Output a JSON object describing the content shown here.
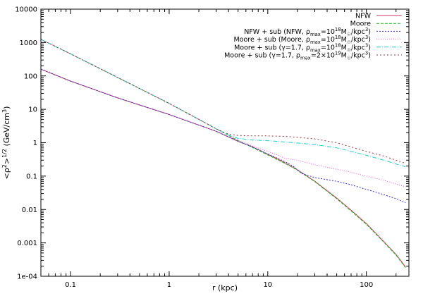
{
  "chart_data": {
    "type": "line",
    "xlabel": "r (kpc)",
    "ylabel": {
      "base": "<ρ",
      "sup1": "2",
      "mid": ">",
      "sup2": "1/2",
      "tail": " (GeV/cm",
      "sup3": "3",
      "end": ")"
    },
    "x_scale": "log",
    "y_scale": "log",
    "xlim": [
      0.05,
      270
    ],
    "ylim": [
      0.0001,
      10000
    ],
    "x_ticks": [
      {
        "value": 0.1,
        "label": "0.1"
      },
      {
        "value": 1,
        "label": "1"
      },
      {
        "value": 10,
        "label": "10"
      },
      {
        "value": 100,
        "label": "100"
      }
    ],
    "y_ticks": [
      {
        "value": 0.0001,
        "label": "1e-04"
      },
      {
        "value": 0.001,
        "label": "0.001"
      },
      {
        "value": 0.01,
        "label": "0.01"
      },
      {
        "value": 0.1,
        "label": "0.1"
      },
      {
        "value": 1,
        "label": "1"
      },
      {
        "value": 10,
        "label": "10"
      },
      {
        "value": 100,
        "label": "100"
      },
      {
        "value": 1000,
        "label": "1000"
      },
      {
        "value": 10000,
        "label": "10000"
      }
    ],
    "legend_placement": "top-right",
    "series": [
      {
        "legend": [
          {
            "t": "NFW"
          }
        ],
        "color": "#cc3366",
        "dash": "",
        "points": [
          [
            0.05,
            160
          ],
          [
            0.1,
            70
          ],
          [
            0.3,
            22
          ],
          [
            1,
            7
          ],
          [
            3,
            2.2
          ],
          [
            5,
            1.1
          ],
          [
            7,
            0.75
          ],
          [
            10,
            0.45
          ],
          [
            15,
            0.25
          ],
          [
            20,
            0.155
          ],
          [
            30,
            0.07
          ],
          [
            50,
            0.022
          ],
          [
            70,
            0.0095
          ],
          [
            100,
            0.0038
          ],
          [
            150,
            0.0011
          ],
          [
            200,
            0.00045
          ],
          [
            250,
            0.00019
          ]
        ]
      },
      {
        "legend": [
          {
            "t": "Moore"
          }
        ],
        "color": "#22bb22",
        "dash": "4,2",
        "points": [
          [
            0.05,
            1250
          ],
          [
            0.1,
            460
          ],
          [
            0.3,
            90
          ],
          [
            1,
            15
          ],
          [
            2,
            5
          ],
          [
            3,
            2.6
          ],
          [
            5,
            1.15
          ],
          [
            7,
            0.72
          ],
          [
            10,
            0.43
          ],
          [
            15,
            0.24
          ],
          [
            20,
            0.15
          ],
          [
            30,
            0.068
          ],
          [
            50,
            0.021
          ],
          [
            70,
            0.009
          ],
          [
            100,
            0.0036
          ],
          [
            150,
            0.00105
          ],
          [
            200,
            0.00043
          ],
          [
            250,
            0.00018
          ]
        ]
      },
      {
        "legend": [
          {
            "t": "NFW + sub (NFW, ρ"
          },
          {
            "t": "max",
            "s": "sub"
          },
          {
            "t": "=10"
          },
          {
            "t": "18",
            "s": "sup"
          },
          {
            "t": "M"
          },
          {
            "t": "☉",
            "s": "sub"
          },
          {
            "t": "/kpc"
          },
          {
            "t": "3",
            "s": "sup"
          },
          {
            "t": ")"
          }
        ],
        "color": "#3333cc",
        "dash": "2,2",
        "points": [
          [
            0.05,
            160
          ],
          [
            0.1,
            70
          ],
          [
            0.3,
            22
          ],
          [
            1,
            7
          ],
          [
            3,
            2.2
          ],
          [
            5,
            1.1
          ],
          [
            7,
            0.75
          ],
          [
            10,
            0.46
          ],
          [
            15,
            0.27
          ],
          [
            18,
            0.2
          ],
          [
            22,
            0.12
          ],
          [
            30,
            0.09
          ],
          [
            50,
            0.07
          ],
          [
            70,
            0.055
          ],
          [
            100,
            0.04
          ],
          [
            150,
            0.028
          ],
          [
            200,
            0.021
          ],
          [
            250,
            0.016
          ]
        ]
      },
      {
        "legend": [
          {
            "t": "Moore + sub (Moore, ρ"
          },
          {
            "t": "max",
            "s": "sub"
          },
          {
            "t": "=10"
          },
          {
            "t": "18",
            "s": "sup"
          },
          {
            "t": "M"
          },
          {
            "t": "☉",
            "s": "sub"
          },
          {
            "t": "/kpc"
          },
          {
            "t": "3",
            "s": "sup"
          },
          {
            "t": ")"
          }
        ],
        "color": "#ee55dd",
        "dash": "1,2",
        "points": [
          [
            0.05,
            1250
          ],
          [
            0.1,
            460
          ],
          [
            0.3,
            90
          ],
          [
            1,
            15
          ],
          [
            2,
            5
          ],
          [
            3,
            2.6
          ],
          [
            5,
            1.2
          ],
          [
            7,
            0.8
          ],
          [
            10,
            0.55
          ],
          [
            12,
            0.45
          ],
          [
            15,
            0.34
          ],
          [
            20,
            0.3
          ],
          [
            30,
            0.22
          ],
          [
            50,
            0.16
          ],
          [
            70,
            0.13
          ],
          [
            100,
            0.1
          ],
          [
            150,
            0.075
          ],
          [
            200,
            0.058
          ],
          [
            250,
            0.048
          ]
        ]
      },
      {
        "legend": [
          {
            "t": "Moore + sub (γ=1.7, ρ"
          },
          {
            "t": "max",
            "s": "sub"
          },
          {
            "t": "=10"
          },
          {
            "t": "18",
            "s": "sup"
          },
          {
            "t": "M"
          },
          {
            "t": "☉",
            "s": "sub"
          },
          {
            "t": "/kpc"
          },
          {
            "t": "3",
            "s": "sup"
          },
          {
            "t": ")"
          }
        ],
        "color": "#22cccc",
        "dash": "6,2,1,2",
        "points": [
          [
            0.05,
            1250
          ],
          [
            0.1,
            460
          ],
          [
            0.3,
            90
          ],
          [
            1,
            15
          ],
          [
            2,
            5
          ],
          [
            3,
            2.6
          ],
          [
            4,
            1.7
          ],
          [
            5,
            1.35
          ],
          [
            7,
            1.2
          ],
          [
            10,
            1.15
          ],
          [
            15,
            1.05
          ],
          [
            20,
            0.98
          ],
          [
            30,
            0.88
          ],
          [
            50,
            0.7
          ],
          [
            70,
            0.55
          ],
          [
            100,
            0.42
          ],
          [
            150,
            0.3
          ],
          [
            200,
            0.23
          ],
          [
            250,
            0.19
          ]
        ]
      },
      {
        "legend": [
          {
            "t": "Moore + sub (γ=1.7, ρ"
          },
          {
            "t": "max",
            "s": "sub"
          },
          {
            "t": "=2×10"
          },
          {
            "t": "19",
            "s": "sup"
          },
          {
            "t": "M"
          },
          {
            "t": "☉",
            "s": "sub"
          },
          {
            "t": "/kpc"
          },
          {
            "t": "3",
            "s": "sup"
          },
          {
            "t": ")"
          }
        ],
        "color": "#993333",
        "dash": "2,3",
        "points": [
          [
            0.05,
            1250
          ],
          [
            0.1,
            460
          ],
          [
            0.3,
            90
          ],
          [
            1,
            15
          ],
          [
            2,
            5
          ],
          [
            3,
            2.6
          ],
          [
            4,
            1.8
          ],
          [
            5,
            1.65
          ],
          [
            7,
            1.6
          ],
          [
            10,
            1.6
          ],
          [
            15,
            1.55
          ],
          [
            20,
            1.45
          ],
          [
            30,
            1.3
          ],
          [
            50,
            1
          ],
          [
            70,
            0.75
          ],
          [
            100,
            0.55
          ],
          [
            150,
            0.4
          ],
          [
            200,
            0.3
          ],
          [
            250,
            0.24
          ]
        ]
      }
    ]
  }
}
